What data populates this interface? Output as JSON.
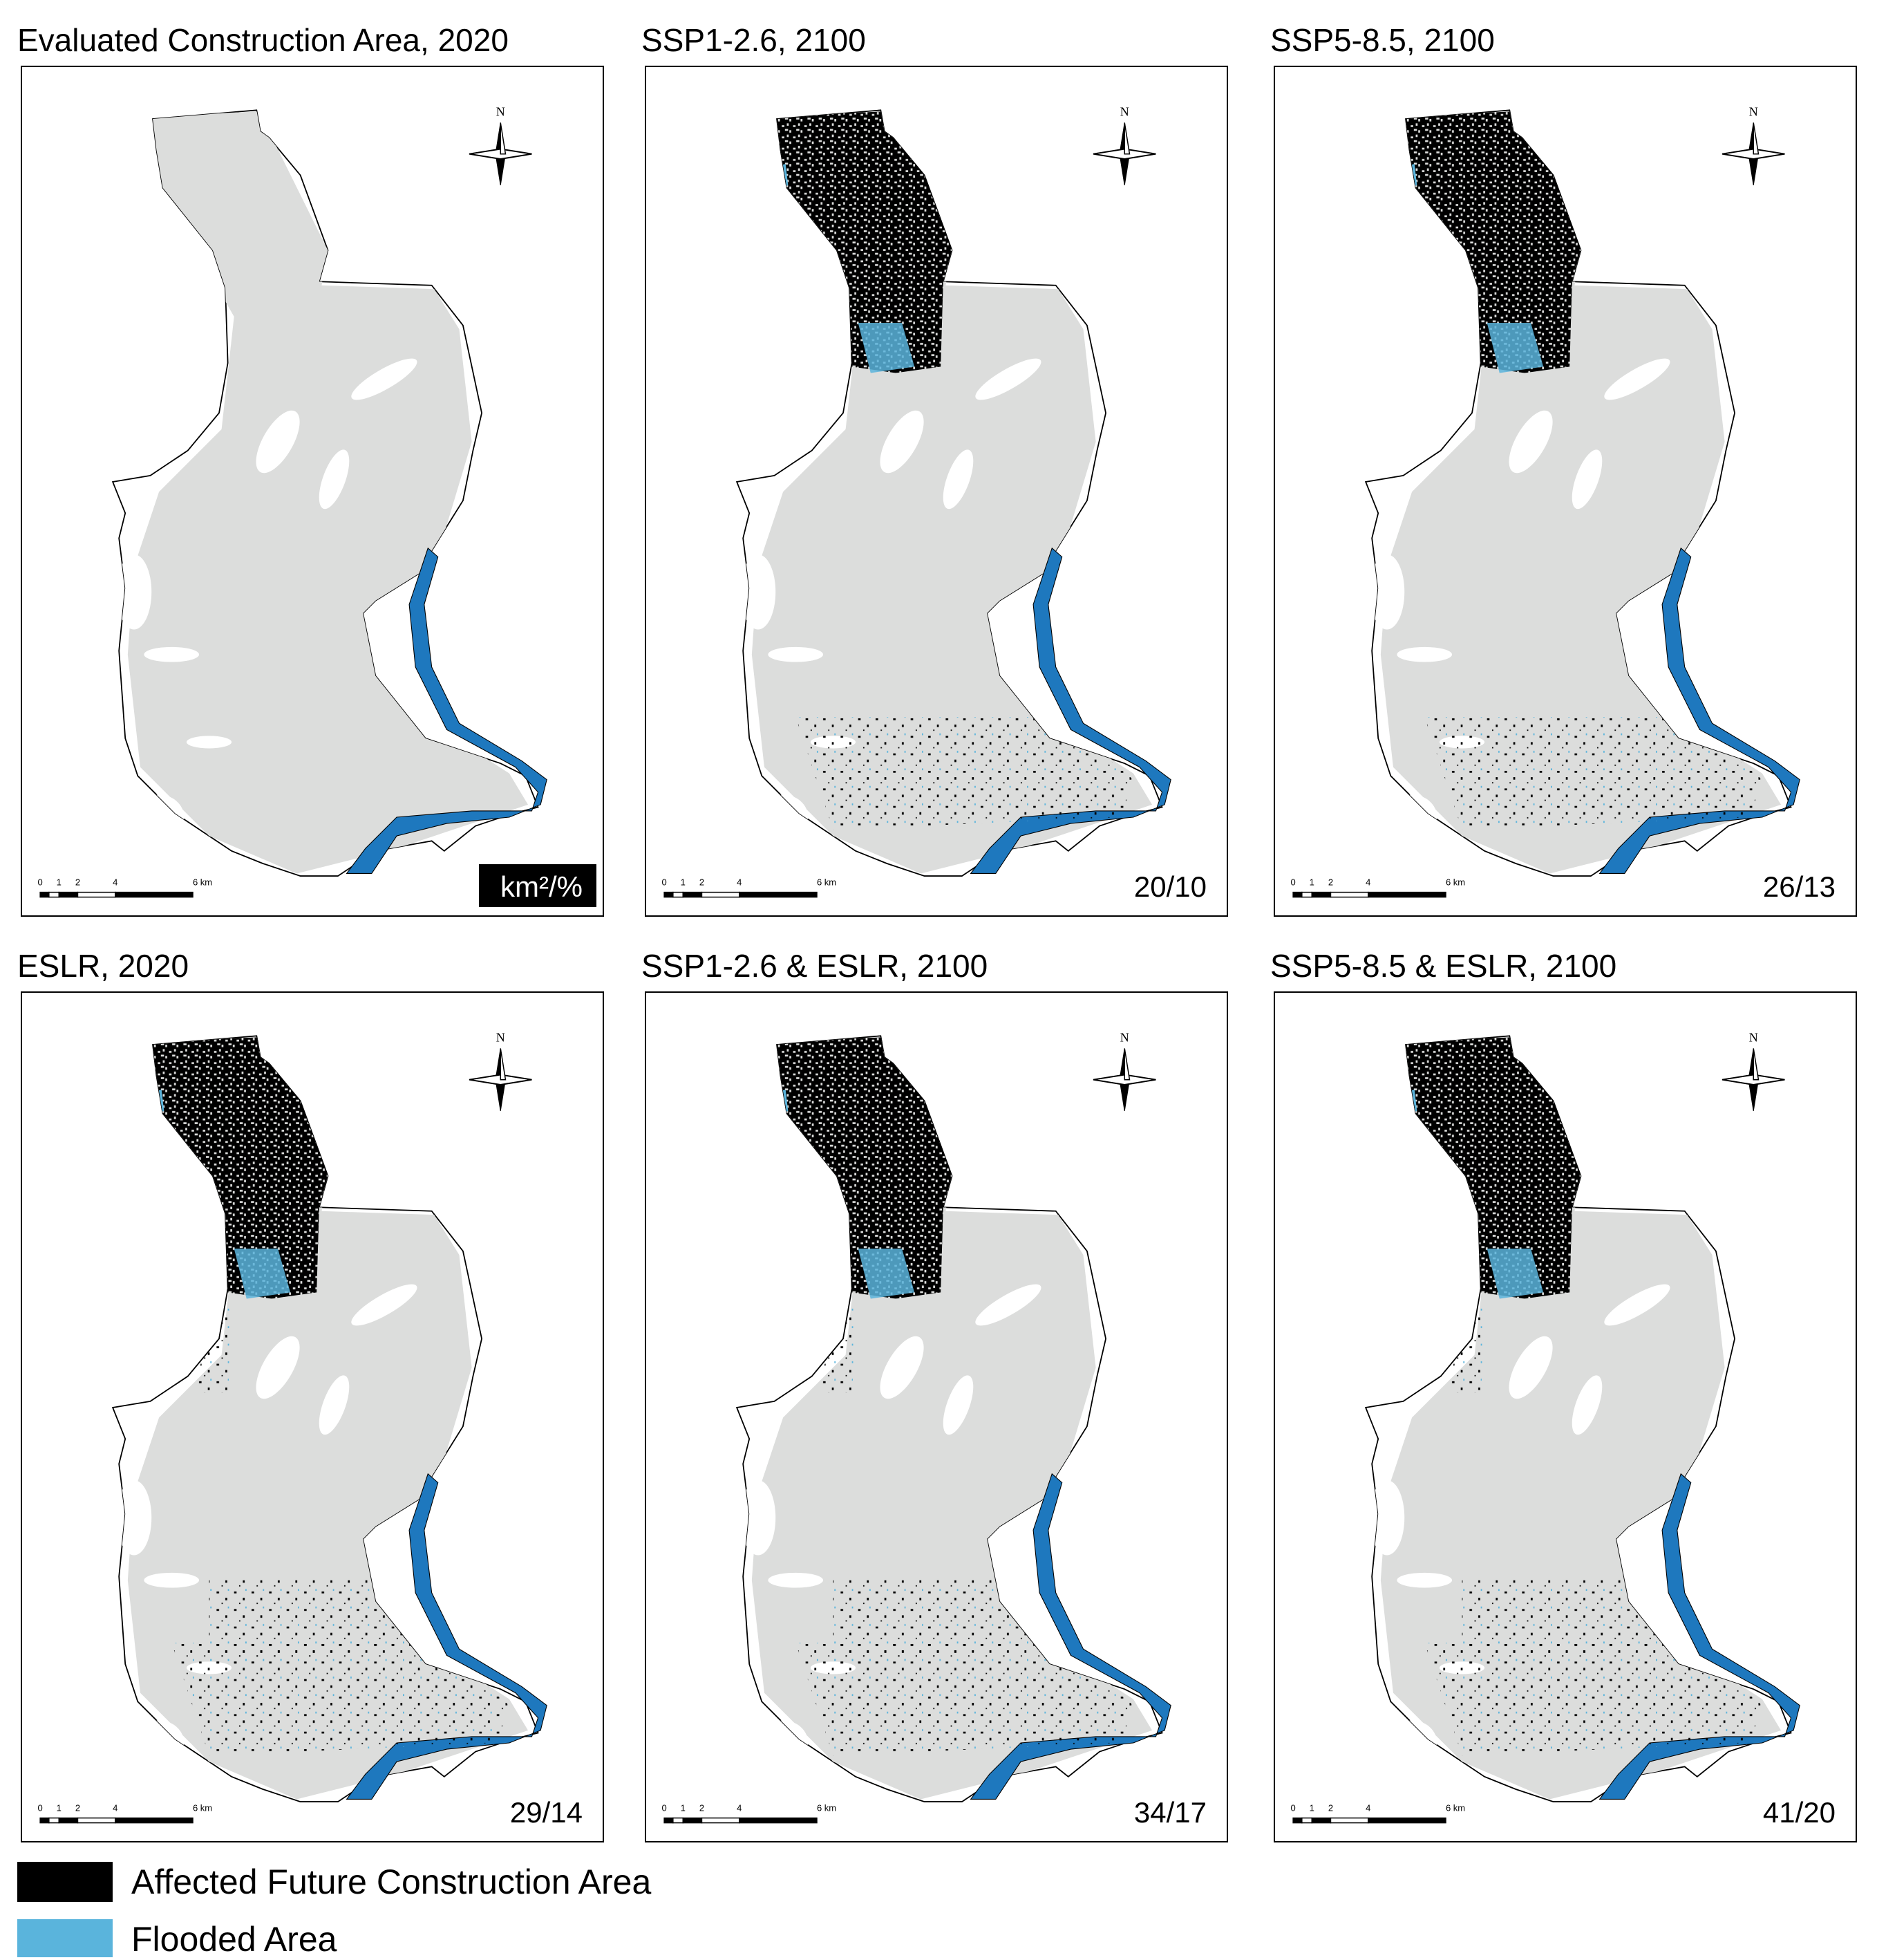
{
  "panels": [
    {
      "title": "Evaluated Construction Area, 2020",
      "corner_label": "km²/%"
    },
    {
      "title": "SSP1-2.6, 2100",
      "corner_label": "20/10"
    },
    {
      "title": "SSP5-8.5, 2100",
      "corner_label": "26/13"
    },
    {
      "title": "ESLR, 2020",
      "corner_label": "29/14"
    },
    {
      "title": "SSP1-2.6 & ESLR, 2100",
      "corner_label": "34/17"
    },
    {
      "title": "SSP5-8.5 & ESLR, 2100",
      "corner_label": "41/20"
    }
  ],
  "compass_label": "N",
  "scale_labels": [
    "0",
    "1",
    "2",
    "4",
    "6 km"
  ],
  "legend": [
    {
      "label": "Affected Future Construction Area",
      "color": "#000000"
    },
    {
      "label": "Flooded Area",
      "color": "#5ab4dc"
    }
  ]
}
